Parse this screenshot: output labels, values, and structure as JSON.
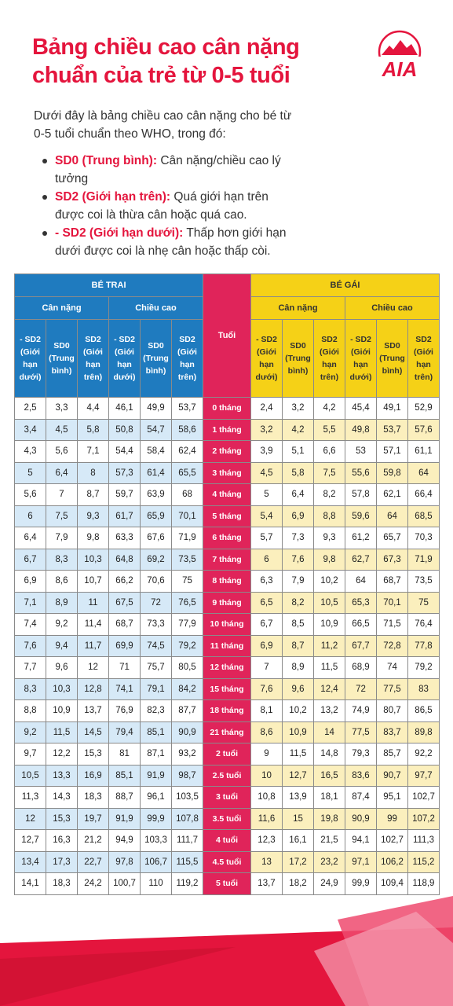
{
  "title_line1": "Bảng chiều cao cân nặng",
  "title_line2": "chuẩn của trẻ từ 0-5 tuổi",
  "logo_text": "AIA",
  "intro": "Dưới đây là bảng chiều cao cân nặng cho bé từ 0-5 tuổi chuẩn theo WHO, trong đó:",
  "bullets": [
    {
      "label": "SD0 (Trung bình):",
      "text": " Cân nặng/chiều cao lý tưởng"
    },
    {
      "label": "SD2 (Giới hạn trên):",
      "text": " Quá giới hạn trên được coi là thừa cân hoặc quá cao."
    },
    {
      "label": "- SD2 (Giới hạn dưới):",
      "text": " Thấp hơn giới hạn dưới được coi là nhẹ cân hoặc thấp còi."
    }
  ],
  "table": {
    "boy": "BÉ TRAI",
    "girl": "BÉ GÁI",
    "age": "Tuổi",
    "weight": "Cân nặng",
    "height": "Chiều cao",
    "cols": [
      "- SD2 (Giới hạn dưới)",
      "SD0 (Trung bình)",
      "SD2 (Giới hạn trên)"
    ],
    "rows": [
      [
        "2,5",
        "3,3",
        "4,4",
        "46,1",
        "49,9",
        "53,7",
        "0 tháng",
        "2,4",
        "3,2",
        "4,2",
        "45,4",
        "49,1",
        "52,9"
      ],
      [
        "3,4",
        "4,5",
        "5,8",
        "50,8",
        "54,7",
        "58,6",
        "1 tháng",
        "3,2",
        "4,2",
        "5,5",
        "49,8",
        "53,7",
        "57,6"
      ],
      [
        "4,3",
        "5,6",
        "7,1",
        "54,4",
        "58,4",
        "62,4",
        "2 tháng",
        "3,9",
        "5,1",
        "6,6",
        "53",
        "57,1",
        "61,1"
      ],
      [
        "5",
        "6,4",
        "8",
        "57,3",
        "61,4",
        "65,5",
        "3 tháng",
        "4,5",
        "5,8",
        "7,5",
        "55,6",
        "59,8",
        "64"
      ],
      [
        "5,6",
        "7",
        "8,7",
        "59,7",
        "63,9",
        "68",
        "4 tháng",
        "5",
        "6,4",
        "8,2",
        "57,8",
        "62,1",
        "66,4"
      ],
      [
        "6",
        "7,5",
        "9,3",
        "61,7",
        "65,9",
        "70,1",
        "5 tháng",
        "5,4",
        "6,9",
        "8,8",
        "59,6",
        "64",
        "68,5"
      ],
      [
        "6,4",
        "7,9",
        "9,8",
        "63,3",
        "67,6",
        "71,9",
        "6 tháng",
        "5,7",
        "7,3",
        "9,3",
        "61,2",
        "65,7",
        "70,3"
      ],
      [
        "6,7",
        "8,3",
        "10,3",
        "64,8",
        "69,2",
        "73,5",
        "7 tháng",
        "6",
        "7,6",
        "9,8",
        "62,7",
        "67,3",
        "71,9"
      ],
      [
        "6,9",
        "8,6",
        "10,7",
        "66,2",
        "70,6",
        "75",
        "8 tháng",
        "6,3",
        "7,9",
        "10,2",
        "64",
        "68,7",
        "73,5"
      ],
      [
        "7,1",
        "8,9",
        "11",
        "67,5",
        "72",
        "76,5",
        "9 tháng",
        "6,5",
        "8,2",
        "10,5",
        "65,3",
        "70,1",
        "75"
      ],
      [
        "7,4",
        "9,2",
        "11,4",
        "68,7",
        "73,3",
        "77,9",
        "10 tháng",
        "6,7",
        "8,5",
        "10,9",
        "66,5",
        "71,5",
        "76,4"
      ],
      [
        "7,6",
        "9,4",
        "11,7",
        "69,9",
        "74,5",
        "79,2",
        "11 tháng",
        "6,9",
        "8,7",
        "11,2",
        "67,7",
        "72,8",
        "77,8"
      ],
      [
        "7,7",
        "9,6",
        "12",
        "71",
        "75,7",
        "80,5",
        "12 tháng",
        "7",
        "8,9",
        "11,5",
        "68,9",
        "74",
        "79,2"
      ],
      [
        "8,3",
        "10,3",
        "12,8",
        "74,1",
        "79,1",
        "84,2",
        "15 tháng",
        "7,6",
        "9,6",
        "12,4",
        "72",
        "77,5",
        "83"
      ],
      [
        "8,8",
        "10,9",
        "13,7",
        "76,9",
        "82,3",
        "87,7",
        "18 tháng",
        "8,1",
        "10,2",
        "13,2",
        "74,9",
        "80,7",
        "86,5"
      ],
      [
        "9,2",
        "11,5",
        "14,5",
        "79,4",
        "85,1",
        "90,9",
        "21 tháng",
        "8,6",
        "10,9",
        "14",
        "77,5",
        "83,7",
        "89,8"
      ],
      [
        "9,7",
        "12,2",
        "15,3",
        "81",
        "87,1",
        "93,2",
        "2 tuổi",
        "9",
        "11,5",
        "14,8",
        "79,3",
        "85,7",
        "92,2"
      ],
      [
        "10,5",
        "13,3",
        "16,9",
        "85,1",
        "91,9",
        "98,7",
        "2.5 tuổi",
        "10",
        "12,7",
        "16,5",
        "83,6",
        "90,7",
        "97,7"
      ],
      [
        "11,3",
        "14,3",
        "18,3",
        "88,7",
        "96,1",
        "103,5",
        "3 tuổi",
        "10,8",
        "13,9",
        "18,1",
        "87,4",
        "95,1",
        "102,7"
      ],
      [
        "12",
        "15,3",
        "19,7",
        "91,9",
        "99,9",
        "107,8",
        "3.5 tuổi",
        "11,6",
        "15",
        "19,8",
        "90,9",
        "99",
        "107,2"
      ],
      [
        "12,7",
        "16,3",
        "21,2",
        "94,9",
        "103,3",
        "111,7",
        "4 tuổi",
        "12,3",
        "16,1",
        "21,5",
        "94,1",
        "102,7",
        "111,3"
      ],
      [
        "13,4",
        "17,3",
        "22,7",
        "97,8",
        "106,7",
        "115,5",
        "4.5 tuổi",
        "13",
        "17,2",
        "23,2",
        "97,1",
        "106,2",
        "115,2"
      ],
      [
        "14,1",
        "18,3",
        "24,2",
        "100,7",
        "110",
        "119,2",
        "5 tuổi",
        "13,7",
        "18,2",
        "24,9",
        "99,9",
        "109,4",
        "118,9"
      ]
    ]
  },
  "colors": {
    "accent_red": "#e4153d",
    "boy_blue": "#1f7bbf",
    "girl_yellow": "#f5d117",
    "age_pink": "#e0245a"
  }
}
